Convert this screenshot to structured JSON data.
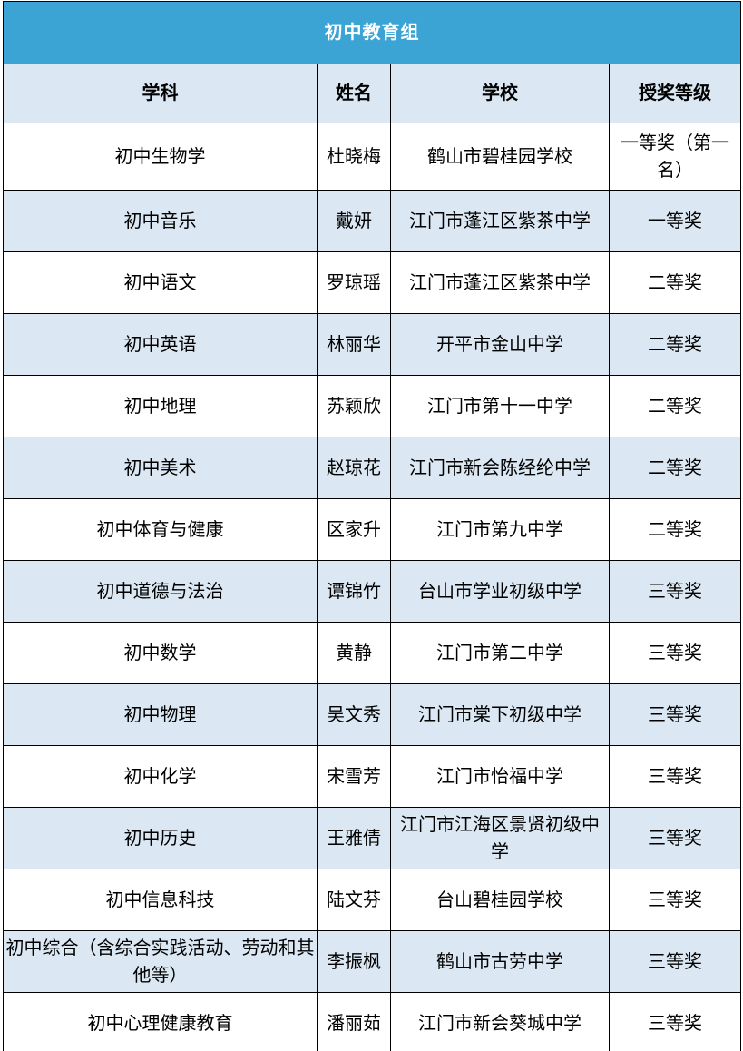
{
  "title_bar": {
    "label": "初中教育组"
  },
  "colors": {
    "title_bar_bg": "#3ca3d5",
    "title_bar_text": "#ffffff",
    "shaded_row_bg": "#dbe8f3",
    "row_bg": "#ffffff",
    "border": "#000000",
    "text": "#000000"
  },
  "table": {
    "headers": [
      "学科",
      "姓名",
      "学校",
      "授奖等级"
    ],
    "column_keys": [
      "subject",
      "name",
      "school",
      "award"
    ],
    "rows": [
      {
        "subject": "初中生物学",
        "name": "杜晓梅",
        "school": "鹤山市碧桂园学校",
        "award": "一等奖（第一名）"
      },
      {
        "subject": "初中音乐",
        "name": "戴妍",
        "school": "江门市蓬江区紫茶中学",
        "award": "一等奖"
      },
      {
        "subject": "初中语文",
        "name": "罗琼瑶",
        "school": "江门市蓬江区紫茶中学",
        "award": "二等奖"
      },
      {
        "subject": "初中英语",
        "name": "林丽华",
        "school": "开平市金山中学",
        "award": "二等奖"
      },
      {
        "subject": "初中地理",
        "name": "苏颖欣",
        "school": "江门市第十一中学",
        "award": "二等奖"
      },
      {
        "subject": "初中美术",
        "name": "赵琼花",
        "school": "江门市新会陈经纶中学",
        "award": "二等奖"
      },
      {
        "subject": "初中体育与健康",
        "name": "区家升",
        "school": "江门市第九中学",
        "award": "二等奖"
      },
      {
        "subject": "初中道德与法治",
        "name": "谭锦竹",
        "school": "台山市学业初级中学",
        "award": "三等奖"
      },
      {
        "subject": "初中数学",
        "name": "黄静",
        "school": "江门市第二中学",
        "award": "三等奖"
      },
      {
        "subject": "初中物理",
        "name": "吴文秀",
        "school": "江门市棠下初级中学",
        "award": "三等奖"
      },
      {
        "subject": "初中化学",
        "name": "宋雪芳",
        "school": "江门市怡福中学",
        "award": "三等奖"
      },
      {
        "subject": "初中历史",
        "name": "王雅倩",
        "school": "江门市江海区景贤初级中学",
        "award": "三等奖"
      },
      {
        "subject": "初中信息科技",
        "name": "陆文芬",
        "school": "台山碧桂园学校",
        "award": "三等奖"
      },
      {
        "subject": "初中综合（含综合实践活动、劳动和其他等）",
        "name": "李振枫",
        "school": "鹤山市古劳中学",
        "award": "三等奖"
      },
      {
        "subject": "初中心理健康教育",
        "name": "潘丽茹",
        "school": "江门市新会葵城中学",
        "award": "三等奖"
      }
    ]
  }
}
